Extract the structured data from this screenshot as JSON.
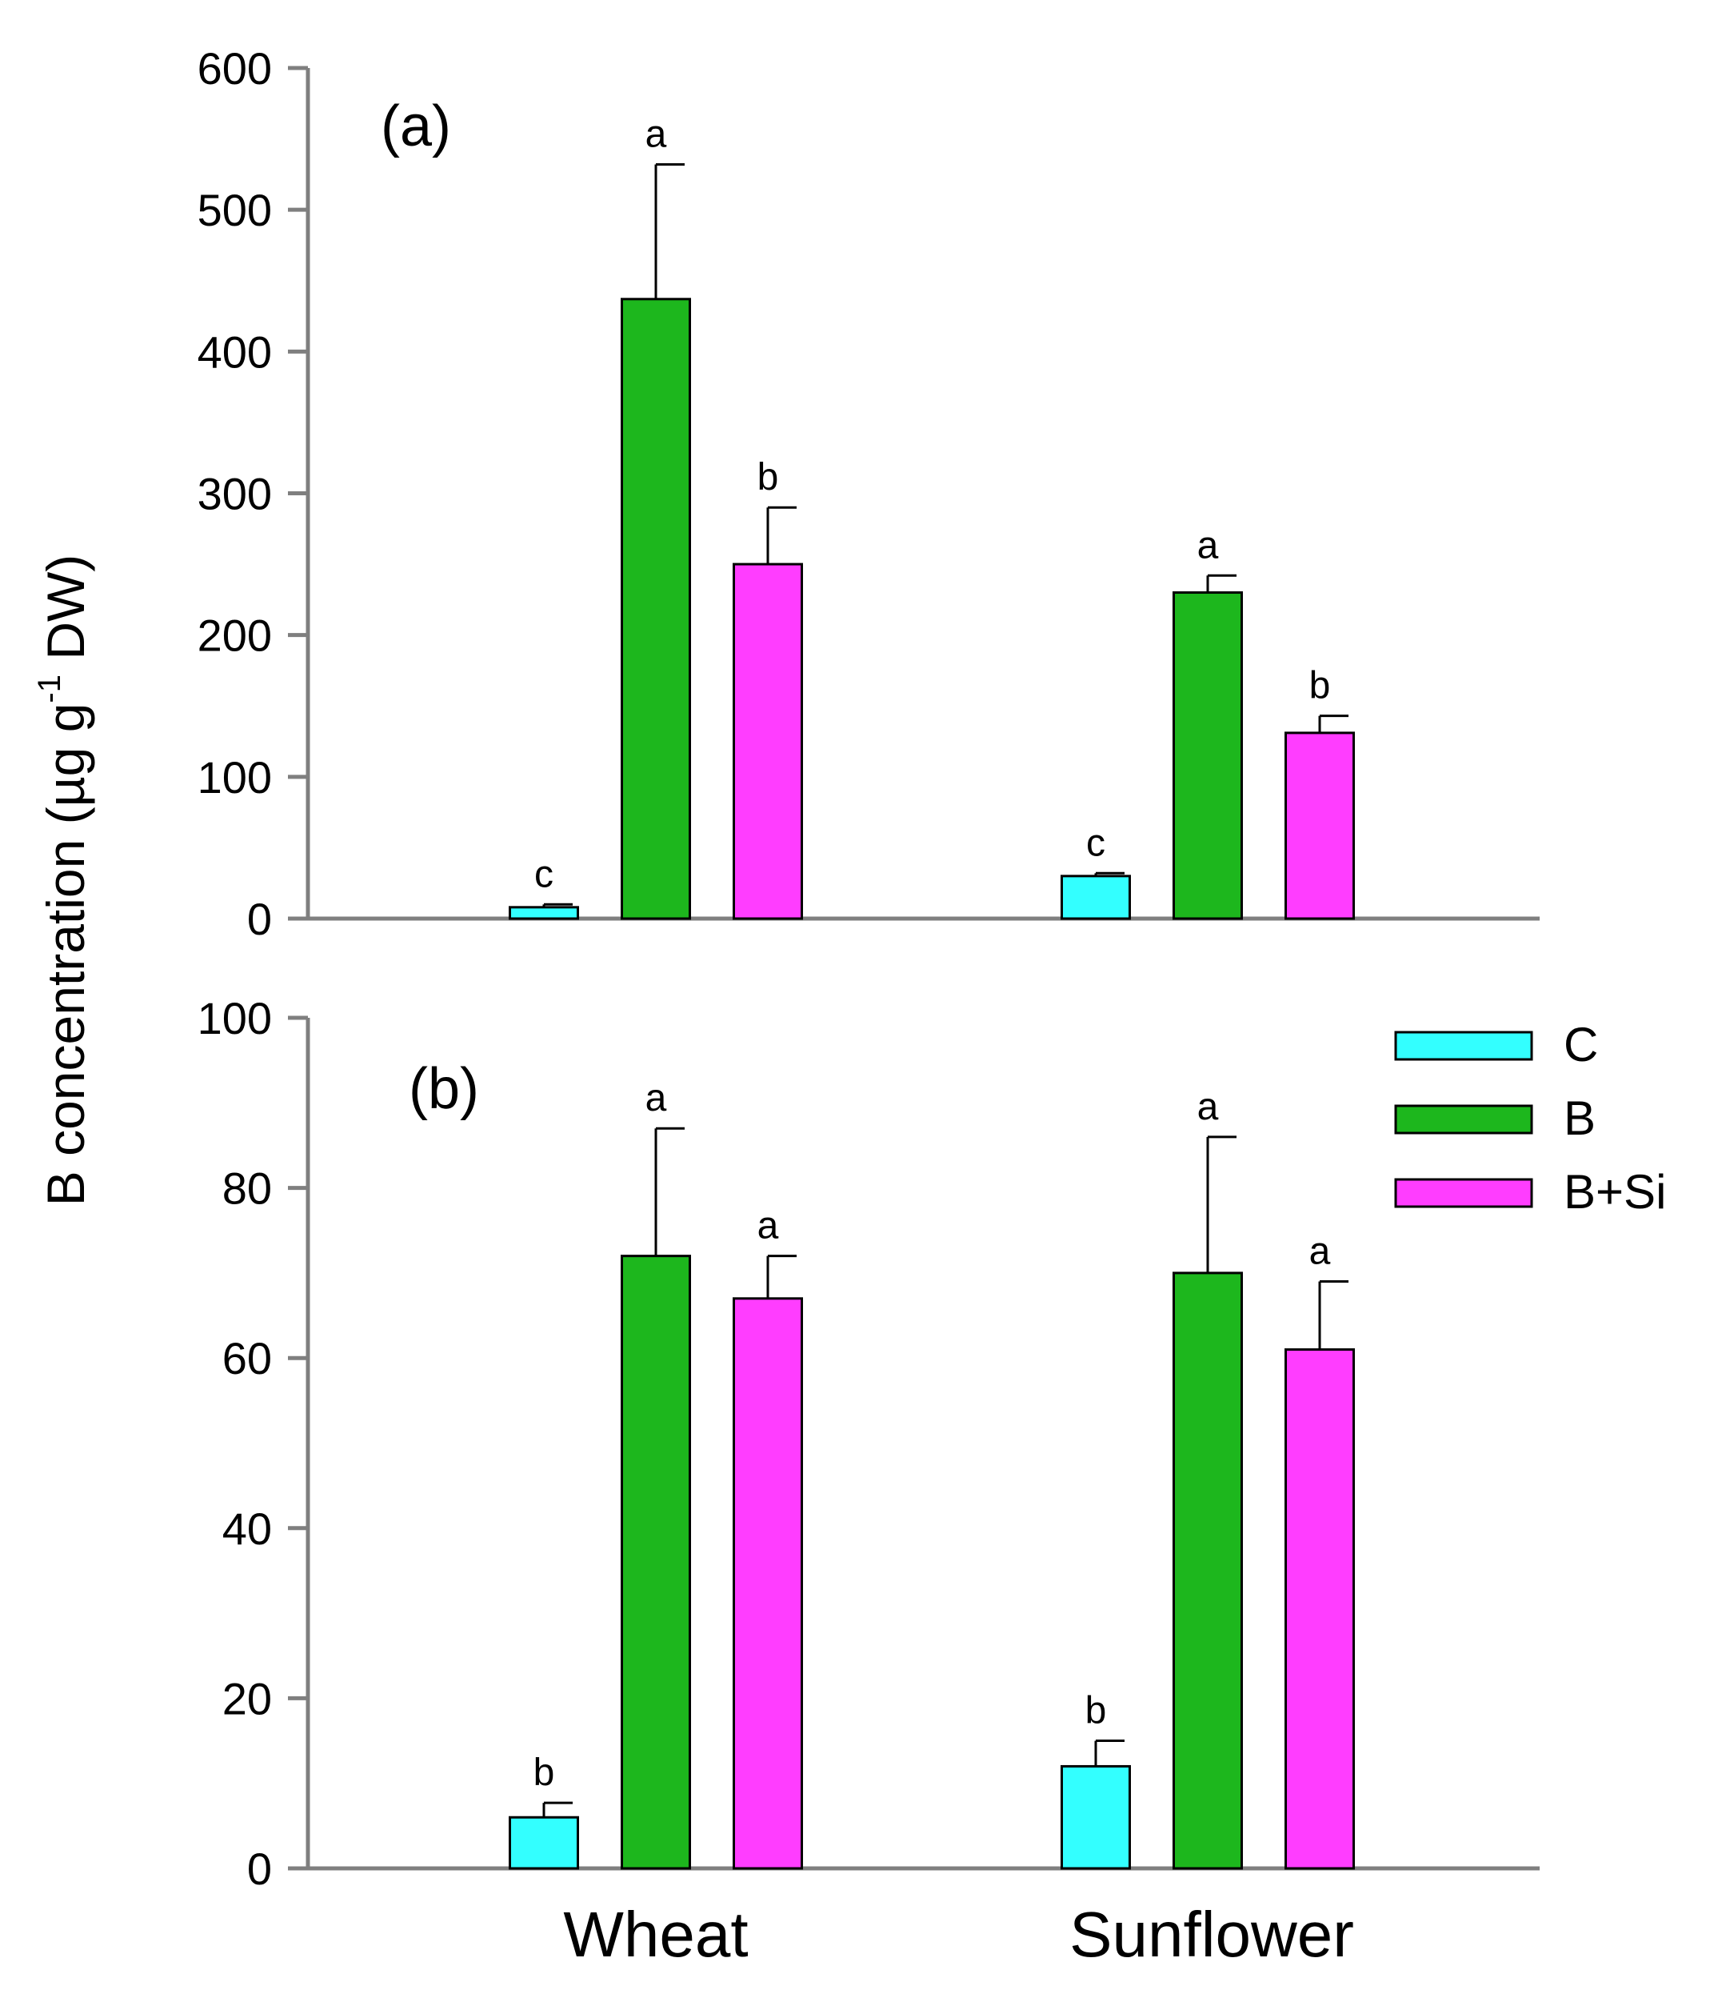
{
  "chart_data": [
    {
      "type": "bar",
      "panel_label": "(a)",
      "categories": [
        "Wheat",
        "Sunflower"
      ],
      "series": [
        {
          "name": "C",
          "color": "#33ffff",
          "values": [
            8,
            30
          ],
          "errors": [
            2,
            2
          ],
          "letters": [
            "c",
            "c"
          ]
        },
        {
          "name": "B",
          "color": "#1db71d",
          "values": [
            437,
            230
          ],
          "errors": [
            95,
            12
          ],
          "letters": [
            "a",
            "a"
          ]
        },
        {
          "name": "B+Si",
          "color": "#ff3dff",
          "values": [
            250,
            131
          ],
          "errors": [
            40,
            12
          ],
          "letters": [
            "b",
            "b"
          ]
        }
      ],
      "ylim": [
        0,
        600
      ],
      "yticks": [
        0,
        100,
        200,
        300,
        400,
        500,
        600
      ],
      "ytick_labels": [
        "0",
        "100",
        "200",
        "300",
        "400",
        "500",
        "600"
      ],
      "grid": false
    },
    {
      "type": "bar",
      "panel_label": "(b)",
      "categories": [
        "Wheat",
        "Sunflower"
      ],
      "series": [
        {
          "name": "C",
          "color": "#33ffff",
          "values": [
            6,
            12
          ],
          "errors": [
            1.7,
            3
          ],
          "letters": [
            "b",
            "b"
          ]
        },
        {
          "name": "B",
          "color": "#1db71d",
          "values": [
            72,
            70
          ],
          "errors": [
            15,
            16
          ],
          "letters": [
            "a",
            "a"
          ]
        },
        {
          "name": "B+Si",
          "color": "#ff3dff",
          "values": [
            67,
            61
          ],
          "errors": [
            5,
            8
          ],
          "letters": [
            "a",
            "a"
          ]
        }
      ],
      "ylim": [
        0,
        100
      ],
      "yticks": [
        0,
        20,
        40,
        60,
        80,
        100
      ],
      "ytick_labels": [
        "0",
        "20",
        "40",
        "60",
        "80",
        "100"
      ],
      "grid": false
    }
  ],
  "ylabel": "B concentration (µg g⁻¹ DW)",
  "ylabel_main": "B concentration (µg g",
  "ylabel_sup": "-1",
  "ylabel_tail": " DW)",
  "xlabels": [
    "Wheat",
    "Sunflower"
  ],
  "legend": {
    "position": "top-right of panel (b)",
    "entries": [
      {
        "label": "C",
        "color": "#33ffff"
      },
      {
        "label": "B",
        "color": "#1db71d"
      },
      {
        "label": "B+Si",
        "color": "#ff3dff"
      }
    ]
  }
}
